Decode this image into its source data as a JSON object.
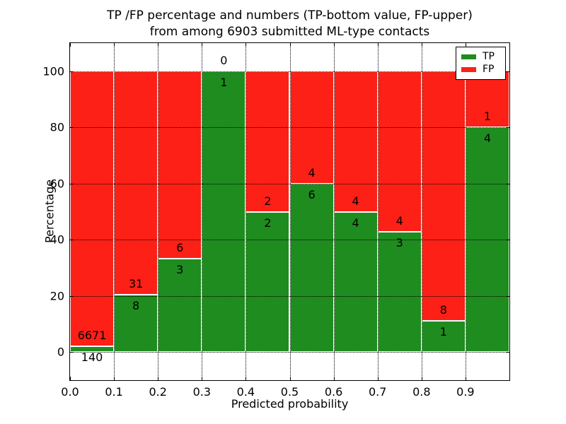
{
  "figure": {
    "title_line1": "TP /FP percentage and numbers (TP-bottom value, FP-upper)",
    "title_line2": "from among 6903 submitted ML-type contacts",
    "xlabel": "Predicted probability",
    "ylabel": "Percentage"
  },
  "legend": {
    "position": "upper right",
    "items": [
      {
        "label": "TP",
        "color": "#1e8c1e"
      },
      {
        "label": "FP",
        "color": "#fc2016"
      }
    ]
  },
  "chart_data": {
    "type": "bar",
    "stacked": true,
    "normalized_to_percent": true,
    "title": "TP /FP percentage and numbers (TP-bottom value, FP-upper)\nfrom among 6903 submitted ML-type contacts",
    "xlabel": "Predicted probability",
    "ylabel": "Percentage",
    "total_contacts": 6903,
    "bin_width": 0.1,
    "categories": [
      "0.0-0.1",
      "0.1-0.2",
      "0.2-0.3",
      "0.3-0.4",
      "0.4-0.5",
      "0.5-0.6",
      "0.6-0.7",
      "0.7-0.8",
      "0.8-0.9",
      "0.9-1.0"
    ],
    "series": [
      {
        "name": "TP",
        "color": "#1e8c1e",
        "counts": [
          140,
          8,
          3,
          1,
          2,
          6,
          4,
          3,
          1,
          4
        ]
      },
      {
        "name": "FP",
        "color": "#fc2016",
        "counts": [
          6671,
          31,
          6,
          0,
          2,
          4,
          4,
          4,
          8,
          1
        ]
      }
    ],
    "tp_percent": [
      2.1,
      20.5,
      33.3,
      100.0,
      50.0,
      60.0,
      50.0,
      42.9,
      11.1,
      80.0
    ],
    "x_tick_labels": [
      "0.0",
      "0.1",
      "0.2",
      "0.3",
      "0.4",
      "0.5",
      "0.6",
      "0.7",
      "0.8",
      "0.9"
    ],
    "y_ticks": [
      0,
      20,
      40,
      60,
      80,
      100
    ],
    "xlim": [
      0.0,
      1.0
    ],
    "ylim": [
      -10,
      110
    ],
    "grid": true,
    "grid_style": "dotted",
    "legend_position": "upper right"
  }
}
